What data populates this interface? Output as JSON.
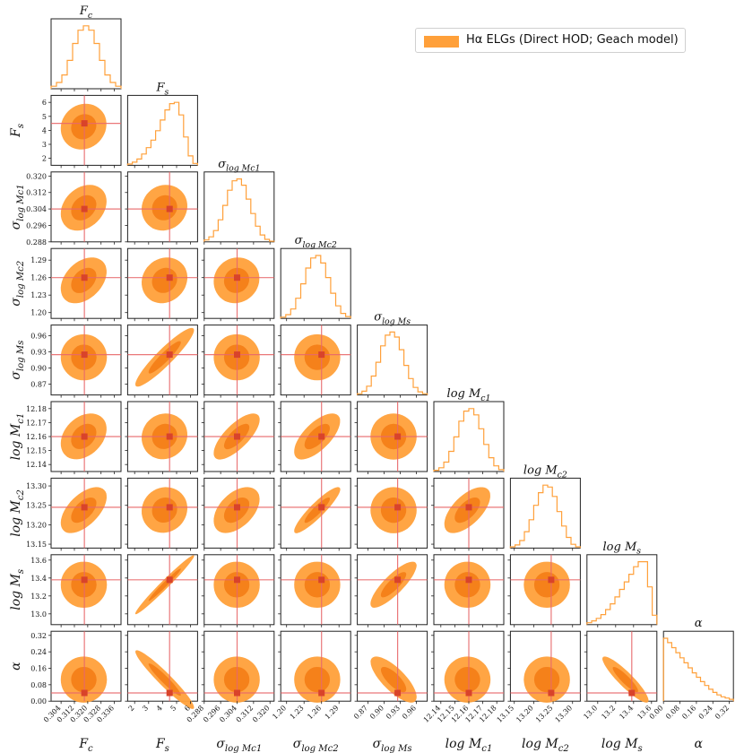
{
  "legend": {
    "label": "Hα ELGs (Direct HOD; Geach model)",
    "color": "#ffa03a"
  },
  "colors": {
    "fill_outer": "#ffa03a",
    "fill_inner": "#f47e18",
    "truth": "#e8696b",
    "hist": "#ffa03a",
    "marker": "#d9432a"
  },
  "chart_data": {
    "type": "corner",
    "title": "",
    "parameters": [
      {
        "name": "F_c",
        "title": "F_c",
        "label": "F_c",
        "truth": 0.318,
        "range": [
          0.298,
          0.34
        ],
        "ticks": [
          0.304,
          0.312,
          0.32,
          0.328,
          0.336
        ],
        "tick_labels": [
          "0.304",
          "0.312",
          "0.320",
          "0.328",
          "0.336"
        ]
      },
      {
        "name": "F_s",
        "title": "F_s",
        "label": "F_s",
        "truth": 4.5,
        "range": [
          1.5,
          6.5
        ],
        "ticks": [
          2,
          3,
          4,
          5,
          6
        ],
        "tick_labels": [
          "2",
          "3",
          "4",
          "5",
          "6"
        ]
      },
      {
        "name": "sigma_logMc1",
        "title": "σ_log Mc1",
        "label": "σ_log Mc1",
        "truth": 0.304,
        "range": [
          0.288,
          0.322
        ],
        "ticks": [
          0.288,
          0.296,
          0.304,
          0.312,
          0.32
        ],
        "tick_labels": [
          "0.288",
          "0.296",
          "0.304",
          "0.312",
          "0.320"
        ]
      },
      {
        "name": "sigma_logMc2",
        "title": "σ_log Mc2",
        "label": "σ_log Mc2",
        "truth": 1.26,
        "range": [
          1.19,
          1.31
        ],
        "ticks": [
          1.2,
          1.23,
          1.26,
          1.29
        ],
        "tick_labels": [
          "1.20",
          "1.23",
          "1.26",
          "1.29"
        ]
      },
      {
        "name": "sigma_logMs",
        "title": "σ_log Ms",
        "label": "σ_log Ms",
        "truth": 0.925,
        "range": [
          0.85,
          0.98
        ],
        "ticks": [
          0.87,
          0.9,
          0.93,
          0.96
        ],
        "tick_labels": [
          "0.87",
          "0.90",
          "0.93",
          "0.96"
        ]
      },
      {
        "name": "logMc1",
        "title": "log Mc1",
        "label": "log Mc1",
        "truth": 12.16,
        "range": [
          12.135,
          12.185
        ],
        "ticks": [
          12.14,
          12.15,
          12.16,
          12.17,
          12.18
        ],
        "tick_labels": [
          "12.14",
          "12.15",
          "12.16",
          "12.17",
          "12.18"
        ]
      },
      {
        "name": "logMc2",
        "title": "log Mc2",
        "label": "log Mc2",
        "truth": 13.245,
        "range": [
          13.14,
          13.32
        ],
        "ticks": [
          13.15,
          13.2,
          13.25,
          13.3
        ],
        "tick_labels": [
          "13.15",
          "13.20",
          "13.25",
          "13.30"
        ]
      },
      {
        "name": "logMs",
        "title": "log Ms",
        "label": "log Ms",
        "truth": 13.38,
        "range": [
          12.88,
          13.66
        ],
        "ticks": [
          13.0,
          13.2,
          13.4,
          13.6
        ],
        "tick_labels": [
          "13.0",
          "13.2",
          "13.4",
          "13.6"
        ]
      },
      {
        "name": "alpha",
        "title": "α",
        "label": "α",
        "truth": 0.04,
        "range": [
          0.0,
          0.34
        ],
        "ticks": [
          0.0,
          0.08,
          0.16,
          0.24,
          0.32
        ],
        "tick_labels": [
          "0.00",
          "0.08",
          "0.16",
          "0.24",
          "0.32"
        ]
      }
    ],
    "histograms": [
      [
        0.04,
        0.1,
        0.22,
        0.45,
        0.72,
        0.93,
        1.0,
        0.93,
        0.72,
        0.45,
        0.22,
        0.1,
        0.04
      ],
      [
        0.02,
        0.05,
        0.1,
        0.18,
        0.28,
        0.4,
        0.55,
        0.72,
        0.88,
        0.98,
        1.0,
        0.8,
        0.45,
        0.15,
        0.03
      ],
      [
        0.03,
        0.08,
        0.18,
        0.35,
        0.58,
        0.82,
        0.97,
        1.0,
        0.9,
        0.68,
        0.45,
        0.25,
        0.11,
        0.04,
        0.01
      ],
      [
        0.02,
        0.06,
        0.15,
        0.32,
        0.55,
        0.8,
        0.96,
        1.0,
        0.88,
        0.65,
        0.4,
        0.2,
        0.08,
        0.03
      ],
      [
        0.02,
        0.06,
        0.14,
        0.3,
        0.52,
        0.78,
        0.95,
        1.0,
        0.92,
        0.72,
        0.47,
        0.26,
        0.12,
        0.05,
        0.02
      ],
      [
        0.02,
        0.06,
        0.15,
        0.32,
        0.55,
        0.8,
        0.96,
        1.0,
        0.9,
        0.68,
        0.43,
        0.22,
        0.09,
        0.03
      ],
      [
        0.02,
        0.05,
        0.12,
        0.26,
        0.45,
        0.68,
        0.88,
        1.0,
        0.97,
        0.82,
        0.58,
        0.35,
        0.17,
        0.06,
        0.02
      ],
      [
        0.03,
        0.06,
        0.1,
        0.16,
        0.24,
        0.33,
        0.44,
        0.56,
        0.68,
        0.8,
        0.92,
        1.0,
        1.0,
        0.6,
        0.15
      ],
      [
        1.0,
        0.93,
        0.85,
        0.77,
        0.69,
        0.61,
        0.53,
        0.45,
        0.38,
        0.31,
        0.25,
        0.19,
        0.14,
        0.1,
        0.07,
        0.05,
        0.03
      ]
    ],
    "correlations": [
      [
        null,
        null,
        null,
        null,
        null,
        null,
        null,
        null,
        null
      ],
      [
        0.08,
        null,
        null,
        null,
        null,
        null,
        null,
        null,
        null
      ],
      [
        0.25,
        0.05,
        null,
        null,
        null,
        null,
        null,
        null,
        null
      ],
      [
        0.35,
        0.1,
        0.05,
        null,
        null,
        null,
        null,
        null,
        null
      ],
      [
        0.0,
        0.92,
        0.0,
        0.0,
        null,
        null,
        null,
        null,
        null
      ],
      [
        0.3,
        0.05,
        0.72,
        0.65,
        0.0,
        null,
        null,
        null,
        null
      ],
      [
        0.55,
        0.05,
        0.45,
        0.9,
        0.0,
        0.6,
        null,
        null,
        null
      ],
      [
        0.0,
        0.995,
        0.0,
        0.0,
        0.82,
        0.0,
        0.0,
        null,
        null
      ],
      [
        0.0,
        -0.95,
        0.0,
        0.0,
        -0.75,
        0.0,
        0.0,
        -0.9,
        null
      ]
    ]
  }
}
